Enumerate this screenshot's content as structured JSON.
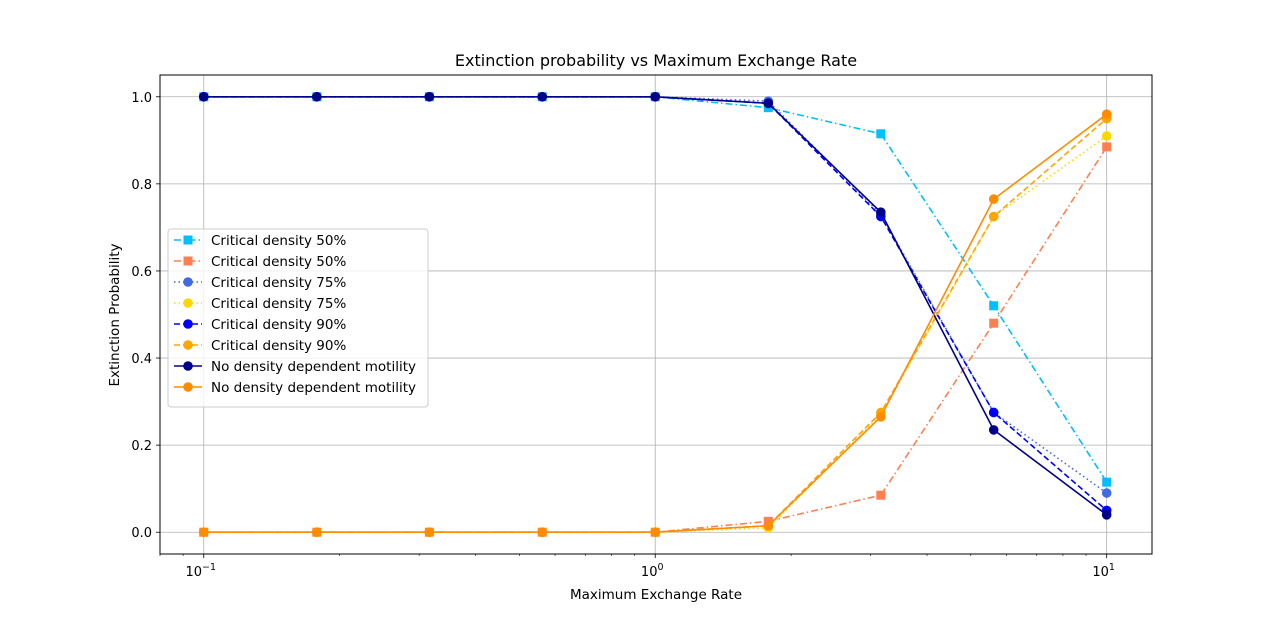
{
  "chart_data": {
    "type": "line",
    "title": "Extinction probability vs Maximum Exchange Rate",
    "xlabel": "Maximum Exchange Rate",
    "ylabel": "Extinction Probability",
    "xscale": "log",
    "xlim": [
      0.08,
      12.6
    ],
    "ylim": [
      -0.05,
      1.05
    ],
    "grid": true,
    "legend_position": "center-left",
    "x_ticks": [
      {
        "value": 0.1,
        "base": "10",
        "exp": "−1"
      },
      {
        "value": 1,
        "base": "10",
        "exp": "0"
      },
      {
        "value": 10,
        "base": "10",
        "exp": "1"
      }
    ],
    "y_ticks": [
      {
        "value": 0.0,
        "label": "0.0"
      },
      {
        "value": 0.2,
        "label": "0.2"
      },
      {
        "value": 0.4,
        "label": "0.4"
      },
      {
        "value": 0.6,
        "label": "0.6"
      },
      {
        "value": 0.8,
        "label": "0.8"
      },
      {
        "value": 1.0,
        "label": "1.0"
      }
    ],
    "x": [
      0.1,
      0.178,
      0.316,
      0.562,
      1.0,
      1.78,
      3.16,
      5.62,
      10.0
    ],
    "series": [
      {
        "name": "Critical density 50%",
        "color": "#00bfff",
        "dash": "dashdot",
        "marker": "square",
        "values": [
          1.0,
          1.0,
          1.0,
          1.0,
          1.0,
          0.975,
          0.915,
          0.52,
          0.115
        ]
      },
      {
        "name": "Critical density 50%",
        "color": "#ff7f50",
        "dash": "dashdot",
        "marker": "square",
        "values": [
          0.0,
          0.0,
          0.0,
          0.0,
          0.0,
          0.025,
          0.085,
          0.48,
          0.885
        ]
      },
      {
        "name": "Critical density 75%",
        "color": "#4169e1",
        "dash": "dotted",
        "marker": "circle",
        "values": [
          1.0,
          1.0,
          1.0,
          1.0,
          1.0,
          0.99,
          0.73,
          0.275,
          0.09
        ]
      },
      {
        "name": "Critical density 75%",
        "color": "#ffd700",
        "dash": "dotted",
        "marker": "circle",
        "values": [
          0.0,
          0.0,
          0.0,
          0.0,
          0.0,
          0.01,
          0.27,
          0.725,
          0.91
        ]
      },
      {
        "name": "Critical density 90%",
        "color": "#0000ff",
        "dash": "dashed",
        "marker": "circle",
        "values": [
          1.0,
          1.0,
          1.0,
          1.0,
          1.0,
          0.985,
          0.725,
          0.275,
          0.05
        ]
      },
      {
        "name": "Critical density 90%",
        "color": "#ffa500",
        "dash": "dashed",
        "marker": "circle",
        "values": [
          0.0,
          0.0,
          0.0,
          0.0,
          0.0,
          0.015,
          0.275,
          0.725,
          0.95
        ]
      },
      {
        "name": "No density dependent motility",
        "color": "#00008b",
        "dash": "solid",
        "marker": "circle",
        "values": [
          1.0,
          1.0,
          1.0,
          1.0,
          1.0,
          0.985,
          0.735,
          0.235,
          0.04
        ]
      },
      {
        "name": "No density dependent motility",
        "color": "#ff8c00",
        "dash": "solid",
        "marker": "circle",
        "values": [
          0.0,
          0.0,
          0.0,
          0.0,
          0.0,
          0.015,
          0.265,
          0.765,
          0.96
        ]
      }
    ]
  }
}
